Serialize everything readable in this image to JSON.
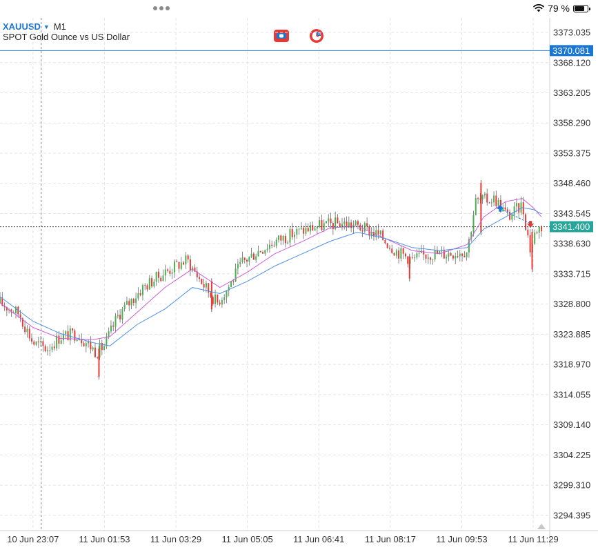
{
  "status_bar": {
    "battery_text": "79 %",
    "battery_level": 0.79,
    "icons": [
      "wifi-icon",
      "battery-icon"
    ]
  },
  "header": {
    "symbol": "XAUUSD",
    "timeframe": "M1",
    "description": "SPOT Gold Ounce vs US Dollar",
    "tools": [
      "one-click-trading-icon",
      "market-clock-icon"
    ]
  },
  "colors": {
    "bull": "#4caf50",
    "bear": "#e53935",
    "accent": "#1976d2",
    "ma_fast": "#cc5fd6",
    "ma_slow": "#4a90e2",
    "price_label": "#26a69a",
    "grid": "#e4e4e4"
  },
  "chart_data": {
    "type": "candlestick",
    "symbol": "XAUUSD",
    "timeframe": "M1",
    "ylim": [
      3291.9,
      3375.4
    ],
    "y_ticks": [
      3373.035,
      3368.12,
      3363.205,
      3358.29,
      3353.375,
      3348.46,
      3343.545,
      3338.63,
      3333.715,
      3328.8,
      3323.885,
      3318.97,
      3314.055,
      3309.14,
      3304.225,
      3299.31,
      3294.395
    ],
    "y_tick_labels": [
      "3373.035",
      "3368.120",
      "3363.205",
      "3358.290",
      "3353.375",
      "3348.460",
      "3343.545",
      "3338.630",
      "3333.715",
      "3328.800",
      "3323.885",
      "3318.970",
      "3314.055",
      "3309.140",
      "3304.225",
      "3299.310",
      "3294.395"
    ],
    "x_tick_labels": [
      "10 Jun 23:07",
      "11 Jun 01:53",
      "11 Jun 03:29",
      "11 Jun 05:05",
      "11 Jun 06:41",
      "11 Jun 08:17",
      "11 Jun 09:53",
      "11 Jun 11:29"
    ],
    "x_tick_fracs": [
      0.06,
      0.19,
      0.32,
      0.45,
      0.58,
      0.71,
      0.84,
      0.97
    ],
    "ask_price": 3370.081,
    "ask_label": "3370.081",
    "bid_price": 3341.4,
    "bid_label": "3341.400",
    "crosshair_x_frac": 0.075,
    "close_path": [
      [
        0.0,
        3329.0
      ],
      [
        0.035,
        3327.2
      ],
      [
        0.06,
        3322.5
      ],
      [
        0.085,
        3321.5
      ],
      [
        0.11,
        3323.5
      ],
      [
        0.14,
        3324.0
      ],
      [
        0.175,
        3321.0
      ],
      [
        0.19,
        3322.0
      ],
      [
        0.215,
        3327.0
      ],
      [
        0.26,
        3331.5
      ],
      [
        0.3,
        3334.0
      ],
      [
        0.34,
        3336.0
      ],
      [
        0.37,
        3332.0
      ],
      [
        0.395,
        3329.0
      ],
      [
        0.415,
        3331.5
      ],
      [
        0.44,
        3335.5
      ],
      [
        0.47,
        3337.5
      ],
      [
        0.5,
        3339.0
      ],
      [
        0.54,
        3340.5
      ],
      [
        0.58,
        3341.5
      ],
      [
        0.62,
        3342.0
      ],
      [
        0.65,
        3341.5
      ],
      [
        0.69,
        3340.0
      ],
      [
        0.72,
        3337.5
      ],
      [
        0.75,
        3336.0
      ],
      [
        0.78,
        3337.0
      ],
      [
        0.81,
        3337.0
      ],
      [
        0.85,
        3337.5
      ],
      [
        0.865,
        3345.5
      ],
      [
        0.9,
        3346.0
      ],
      [
        0.925,
        3343.0
      ],
      [
        0.95,
        3345.0
      ],
      [
        0.965,
        3337.5
      ],
      [
        0.975,
        3341.0
      ],
      [
        0.985,
        3341.4
      ]
    ],
    "series": [
      {
        "name": "",
        "color": "#cc5fd6",
        "kind": "ma",
        "points": [
          [
            0.0,
            3329.0
          ],
          [
            0.06,
            3325.0
          ],
          [
            0.11,
            3323.2
          ],
          [
            0.17,
            3323.0
          ],
          [
            0.2,
            3323.5
          ],
          [
            0.25,
            3327.5
          ],
          [
            0.3,
            3331.5
          ],
          [
            0.35,
            3334.5
          ],
          [
            0.4,
            3331.5
          ],
          [
            0.45,
            3334.0
          ],
          [
            0.5,
            3337.0
          ],
          [
            0.55,
            3339.0
          ],
          [
            0.6,
            3341.2
          ],
          [
            0.65,
            3341.5
          ],
          [
            0.7,
            3339.5
          ],
          [
            0.75,
            3337.5
          ],
          [
            0.8,
            3337.0
          ],
          [
            0.85,
            3338.5
          ],
          [
            0.88,
            3343.0
          ],
          [
            0.92,
            3345.5
          ],
          [
            0.95,
            3346.0
          ],
          [
            0.97,
            3344.5
          ],
          [
            0.985,
            3343.0
          ]
        ]
      },
      {
        "name": "",
        "color": "#4a90e2",
        "kind": "ma",
        "points": [
          [
            0.0,
            3330.0
          ],
          [
            0.06,
            3326.0
          ],
          [
            0.11,
            3324.0
          ],
          [
            0.17,
            3322.5
          ],
          [
            0.2,
            3322.0
          ],
          [
            0.25,
            3325.5
          ],
          [
            0.3,
            3328.0
          ],
          [
            0.35,
            3331.5
          ],
          [
            0.4,
            3330.5
          ],
          [
            0.45,
            3332.5
          ],
          [
            0.5,
            3335.0
          ],
          [
            0.55,
            3337.0
          ],
          [
            0.6,
            3339.0
          ],
          [
            0.65,
            3340.5
          ],
          [
            0.7,
            3339.5
          ],
          [
            0.75,
            3338.0
          ],
          [
            0.8,
            3337.5
          ],
          [
            0.85,
            3338.0
          ],
          [
            0.88,
            3341.0
          ],
          [
            0.92,
            3343.0
          ],
          [
            0.95,
            3344.5
          ],
          [
            0.97,
            3344.2
          ],
          [
            0.985,
            3343.5
          ]
        ]
      }
    ],
    "spikes": [
      {
        "x": 0.18,
        "low": 3316.5,
        "high": 3322.0
      },
      {
        "x": 0.875,
        "low": 3340.0,
        "high": 3349.0
      },
      {
        "x": 0.968,
        "low": 3334.0,
        "high": 3341.0
      },
      {
        "x": 0.745,
        "low": 3332.5,
        "high": 3337.0
      },
      {
        "x": 0.385,
        "low": 3327.5,
        "high": 3333.0
      }
    ],
    "trade_markers": [
      {
        "kind": "buy",
        "x": 0.91,
        "y": 3344.3
      },
      {
        "kind": "sell",
        "x": 0.965,
        "y": 3341.9
      }
    ],
    "grid": true
  }
}
